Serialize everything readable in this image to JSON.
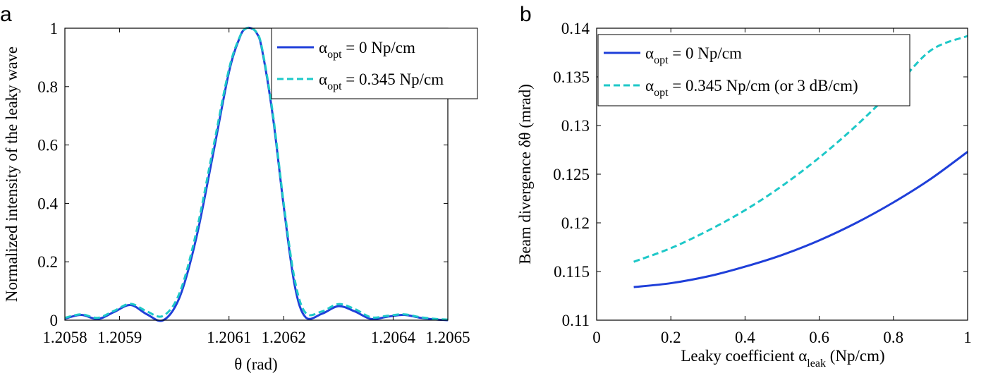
{
  "chart_data": [
    {
      "panel_label": "a",
      "type": "line",
      "xlabel": "θ (rad)",
      "ylabel": "Normalized intensity of the leaky wave",
      "xlim": [
        1.2058,
        1.2065
      ],
      "ylim": [
        0,
        1
      ],
      "xticks": [
        1.2058,
        1.2059,
        1.2061,
        1.2062,
        1.2064,
        1.2065
      ],
      "xtick_labels": [
        "1.2058",
        "1.2059",
        "1.2061",
        "1.2062",
        "1.2064",
        "1.2065"
      ],
      "yticks": [
        0,
        0.2,
        0.4,
        0.6,
        0.8,
        1
      ],
      "ytick_labels": [
        "0",
        "0.2",
        "0.4",
        "0.6",
        "0.8",
        "1"
      ],
      "legend_position": "top-right",
      "series": [
        {
          "name": "α_opt = 0 Np/cm",
          "legend_base": "α",
          "legend_sub": "opt",
          "legend_rest": " = 0 Np/cm",
          "color": "#1f3fd9",
          "style": "solid",
          "x": [
            1.2058,
            1.20583,
            1.20586,
            1.20589,
            1.20592,
            1.20595,
            1.20598,
            1.20601,
            1.20604,
            1.20607,
            1.2061,
            1.20612,
            1.20613,
            1.20614,
            1.20615,
            1.20616,
            1.20618,
            1.2062,
            1.20622,
            1.20624,
            1.20627,
            1.2063,
            1.20633,
            1.20636,
            1.20639,
            1.20642,
            1.20645,
            1.20648,
            1.2065
          ],
          "y": [
            0.005,
            0.018,
            0.004,
            0.028,
            0.052,
            0.02,
            0.0,
            0.08,
            0.28,
            0.56,
            0.85,
            0.97,
            0.998,
            1.0,
            0.985,
            0.93,
            0.7,
            0.39,
            0.12,
            0.01,
            0.022,
            0.048,
            0.03,
            0.004,
            0.012,
            0.018,
            0.008,
            0.002,
            0.0
          ]
        },
        {
          "name": "α_opt = 0.345 Np/cm",
          "legend_base": "α",
          "legend_sub": "opt",
          "legend_rest": " = 0.345 Np/cm",
          "color": "#1ec8c8",
          "style": "dashed",
          "x": [
            1.2058,
            1.20583,
            1.20586,
            1.20589,
            1.20592,
            1.20595,
            1.20598,
            1.20601,
            1.20604,
            1.20607,
            1.2061,
            1.20612,
            1.20613,
            1.20614,
            1.20615,
            1.20616,
            1.20618,
            1.2062,
            1.20622,
            1.20624,
            1.20627,
            1.2063,
            1.20633,
            1.20636,
            1.20639,
            1.20642,
            1.20645,
            1.20648,
            1.2065
          ],
          "y": [
            0.008,
            0.02,
            0.008,
            0.032,
            0.056,
            0.03,
            0.015,
            0.095,
            0.3,
            0.58,
            0.86,
            0.972,
            0.998,
            1.0,
            0.986,
            0.935,
            0.71,
            0.4,
            0.14,
            0.025,
            0.03,
            0.055,
            0.038,
            0.01,
            0.015,
            0.02,
            0.01,
            0.004,
            0.002
          ]
        }
      ]
    },
    {
      "panel_label": "b",
      "type": "line",
      "xlabel_pre": "Leaky coefficient α",
      "xlabel_sub": "leak",
      "xlabel_post": " (Np/cm)",
      "ylabel": "Beam divergence δθ (mrad)",
      "xlim": [
        0,
        1
      ],
      "ylim": [
        0.11,
        0.14
      ],
      "xticks": [
        0,
        0.2,
        0.4,
        0.6,
        0.8,
        1
      ],
      "xtick_labels": [
        "0",
        "0.2",
        "0.4",
        "0.6",
        "0.8",
        "1"
      ],
      "yticks": [
        0.11,
        0.115,
        0.12,
        0.125,
        0.13,
        0.135,
        0.14
      ],
      "ytick_labels": [
        "0.11",
        "0.115",
        "0.12",
        "0.125",
        "0.13",
        "0.135",
        "0.14"
      ],
      "legend_position": "top-left",
      "series": [
        {
          "name": "α_opt = 0 Np/cm",
          "legend_base": "α",
          "legend_sub": "opt",
          "legend_rest": " = 0 Np/cm",
          "color": "#1f3fd9",
          "style": "solid",
          "x": [
            0.1,
            0.2,
            0.3,
            0.4,
            0.5,
            0.6,
            0.7,
            0.8,
            0.9,
            1.0
          ],
          "y": [
            0.1134,
            0.1138,
            0.1145,
            0.1155,
            0.1167,
            0.1182,
            0.12,
            0.1221,
            0.1245,
            0.1273
          ]
        },
        {
          "name": "α_opt = 0.345 Np/cm (or 3 dB/cm)",
          "legend_base": "α",
          "legend_sub": "opt",
          "legend_rest": " = 0.345 Np/cm (or 3 dB/cm)",
          "color": "#1ec8c8",
          "style": "dashed",
          "x": [
            0.1,
            0.2,
            0.3,
            0.4,
            0.5,
            0.6,
            0.7,
            0.8,
            0.9,
            1.0
          ],
          "y": [
            0.116,
            0.1174,
            0.1192,
            0.1213,
            0.1238,
            0.1267,
            0.13,
            0.1337,
            0.1377,
            0.1392
          ]
        }
      ]
    }
  ]
}
